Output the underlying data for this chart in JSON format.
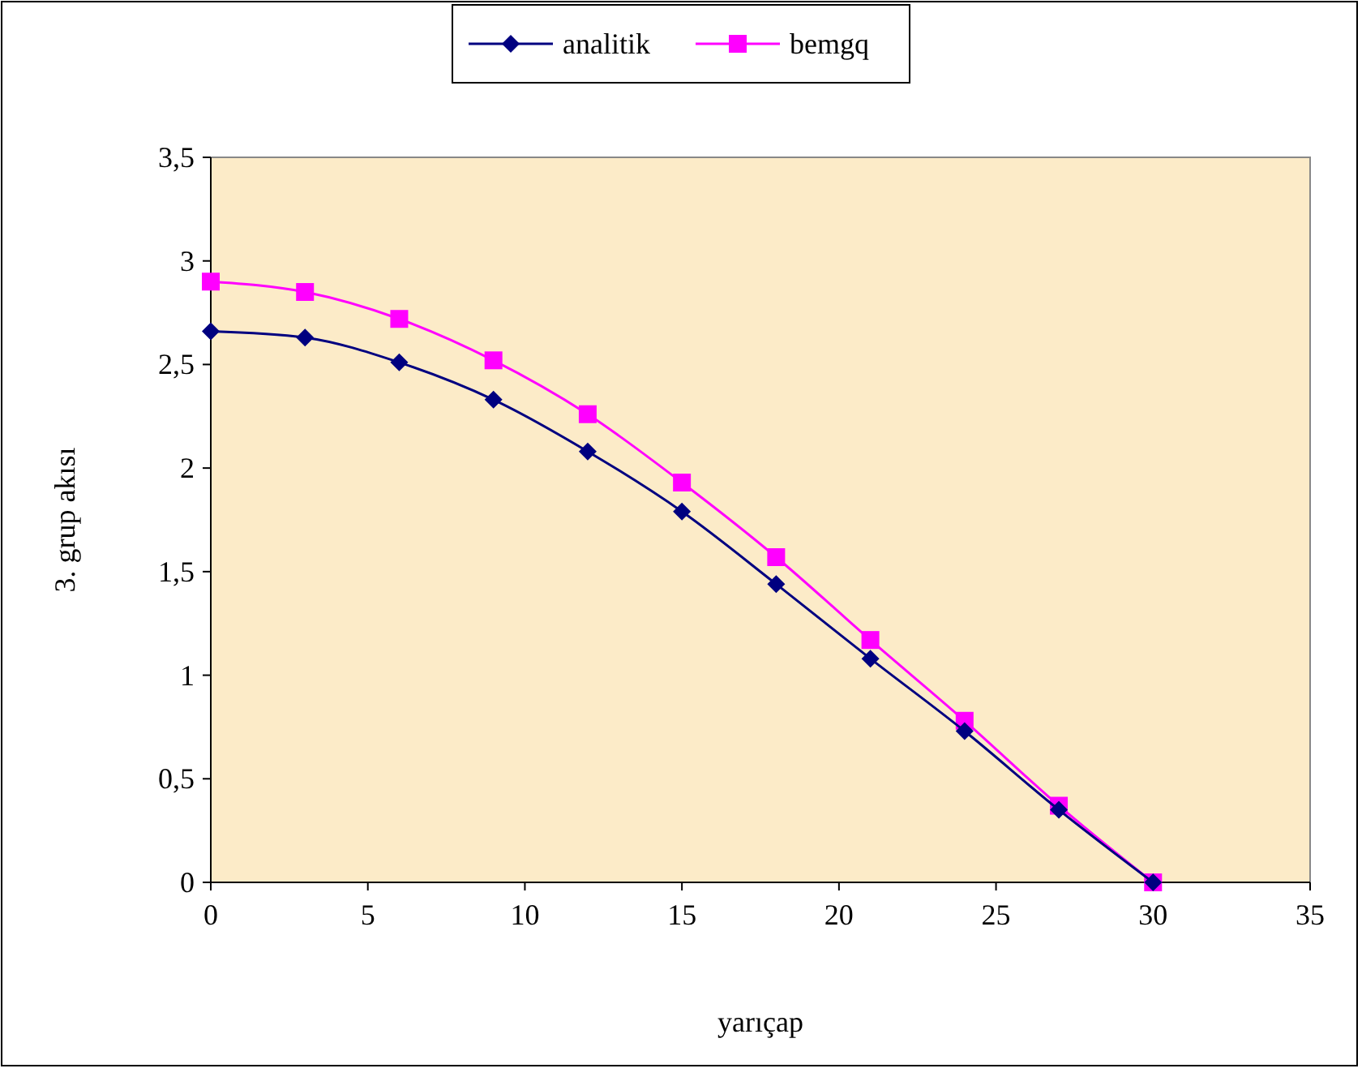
{
  "chart_data": {
    "type": "line",
    "xlabel": "yarıçap",
    "ylabel": "3. grup akısı",
    "x": [
      0,
      3,
      6,
      9,
      12,
      15,
      18,
      21,
      24,
      27,
      30
    ],
    "series": [
      {
        "name": "analitik",
        "color": "#000080",
        "marker": "diamond",
        "values": [
          2.66,
          2.63,
          2.51,
          2.33,
          2.08,
          1.79,
          1.44,
          1.08,
          0.73,
          0.35,
          0
        ]
      },
      {
        "name": "bemgq",
        "color": "#ff00ff",
        "marker": "square",
        "values": [
          2.9,
          2.85,
          2.72,
          2.52,
          2.26,
          1.93,
          1.57,
          1.17,
          0.78,
          0.37,
          0
        ]
      }
    ],
    "xlim": [
      0,
      35
    ],
    "xticks": [
      0,
      5,
      10,
      15,
      20,
      25,
      30,
      35
    ],
    "ylim": [
      0,
      3.5
    ],
    "yticks": [
      {
        "value": 0,
        "label": "0"
      },
      {
        "value": 0.5,
        "label": "0,5"
      },
      {
        "value": 1,
        "label": "1"
      },
      {
        "value": 1.5,
        "label": "1,5"
      },
      {
        "value": 2,
        "label": "2"
      },
      {
        "value": 2.5,
        "label": "2,5"
      },
      {
        "value": 3,
        "label": "3"
      },
      {
        "value": 3.5,
        "label": "3,5"
      }
    ],
    "grid": false,
    "legend": "top",
    "line_style": "solid"
  }
}
